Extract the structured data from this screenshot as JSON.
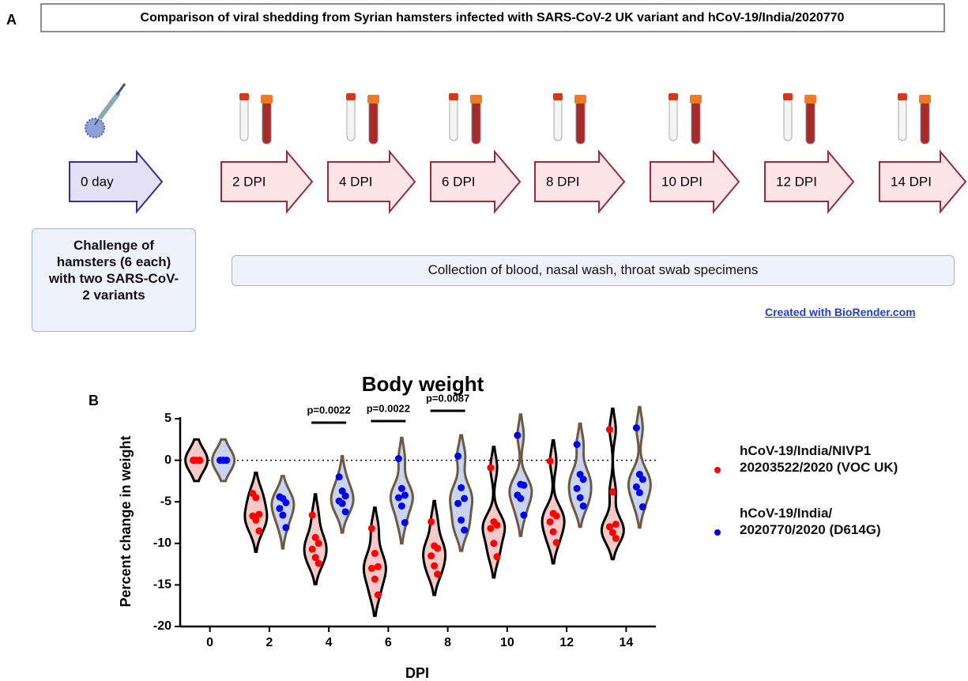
{
  "panel_a": {
    "label": "A",
    "title": "Comparison of viral shedding from Syrian hamsters infected with SARS-CoV-2 UK variant and hCoV-19/India/2020770",
    "timeline": [
      "0 day",
      "2 DPI",
      "4 DPI",
      "6 DPI",
      "8 DPI",
      "10 DPI",
      "12 DPI",
      "14 DPI"
    ],
    "challenge": "Challenge of hamsters (6 each) with two SARS-CoV-2 variants",
    "collection": "Collection of blood, nasal wash, throat swab specimens",
    "credit": "Created with BioRender.com"
  },
  "panel_b_label": "B",
  "chart_data": {
    "type": "violin",
    "title": "Body weight",
    "x_label": "DPI",
    "y_label": "Percent change in weight",
    "categories": [
      "0",
      "2",
      "4",
      "6",
      "8",
      "10",
      "12",
      "14"
    ],
    "ylim": [
      -20,
      5
    ],
    "yticks": [
      -20,
      -15,
      -10,
      -5,
      0,
      5
    ],
    "reference_line": 0,
    "series": [
      {
        "name": "hCoV-19/India/NIVP1 20203522/2020 (VOC UK)",
        "color": "#ff0000",
        "violin_fill": "#f6c9c9",
        "violin_stroke": "#000000",
        "values": [
          [
            0,
            0,
            0,
            0,
            0,
            0
          ],
          [
            -4.0,
            -4.5,
            -6.5,
            -6.7,
            -7.2,
            -8.5
          ],
          [
            -6.6,
            -9.3,
            -10.0,
            -10.7,
            -11.7,
            -12.4
          ],
          [
            -8.2,
            -11.2,
            -12.8,
            -13.0,
            -14.3,
            -16.2
          ],
          [
            -7.4,
            -10.3,
            -10.6,
            -11.5,
            -12.7,
            -13.7
          ],
          [
            -0.9,
            -7.4,
            -7.8,
            -8.2,
            -10.0,
            -11.6
          ],
          [
            -0.1,
            -6.4,
            -6.7,
            -7.4,
            -8.6,
            -9.9
          ],
          [
            3.7,
            -3.8,
            -7.7,
            -8.0,
            -8.7,
            -9.4
          ]
        ]
      },
      {
        "name": "hCoV-19/India/ 2020770/2020 (D614G)",
        "color": "#0000ee",
        "violin_fill": "#c9d3f2",
        "violin_stroke": "#6b5a40",
        "values": [
          [
            0,
            0,
            0,
            0,
            0,
            0
          ],
          [
            -4.4,
            -4.6,
            -5.1,
            -5.8,
            -6.6,
            -8.1
          ],
          [
            -2.0,
            -3.7,
            -4.3,
            -4.9,
            -5.2,
            -6.2
          ],
          [
            0.2,
            -3.4,
            -4.2,
            -4.5,
            -5.5,
            -7.5
          ],
          [
            0.5,
            -3.3,
            -4.6,
            -5.2,
            -7.2,
            -8.4
          ],
          [
            3.0,
            -2.9,
            -3.0,
            -4.2,
            -4.6,
            -6.6
          ],
          [
            1.9,
            -1.7,
            -2.3,
            -3.4,
            -4.5,
            -5.5
          ],
          [
            3.9,
            -1.7,
            -2.3,
            -3.2,
            -3.9,
            -5.6
          ]
        ]
      }
    ],
    "annotations": [
      {
        "text": "p=0.0022",
        "category": "4"
      },
      {
        "text": "p=0.0022",
        "category": "6"
      },
      {
        "text": "p=0.0087",
        "category": "8"
      }
    ]
  }
}
